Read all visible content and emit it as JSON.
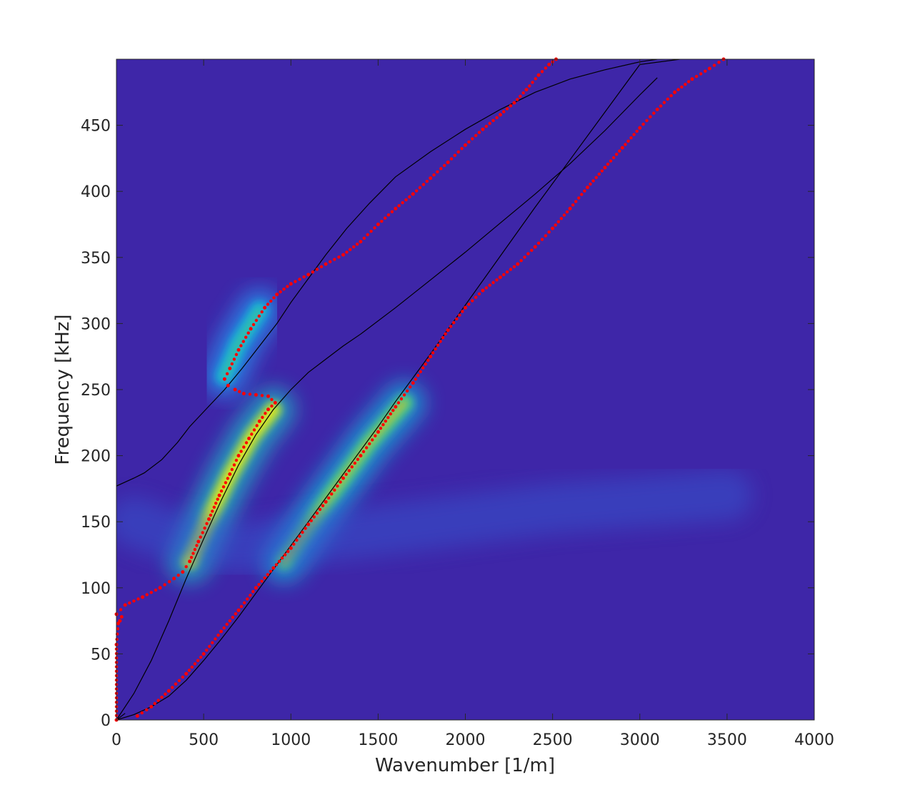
{
  "chart_data": {
    "type": "heatmap",
    "xlabel": "Wavenumber [1/m]",
    "ylabel": "Frequency [kHz]",
    "xlim": [
      0,
      4000
    ],
    "ylim": [
      0,
      500
    ],
    "xticks": [
      0,
      500,
      1000,
      1500,
      2000,
      2500,
      3000,
      3500,
      4000
    ],
    "yticks": [
      0,
      50,
      100,
      150,
      200,
      250,
      300,
      350,
      400,
      450
    ],
    "colormap": "parula",
    "colors": {
      "background": "#3e26a8",
      "theoretical_curves": "#000000",
      "extracted_points": "#ff0000"
    },
    "heatmap_ridges": [
      {
        "points": [
          [
            420,
            120
          ],
          [
            540,
            155
          ],
          [
            650,
            185
          ],
          [
            780,
            215
          ],
          [
            900,
            235
          ]
        ],
        "intensity": 0.95
      },
      {
        "points": [
          [
            620,
            260
          ],
          [
            700,
            285
          ],
          [
            820,
            310
          ]
        ],
        "intensity": 0.55
      },
      {
        "points": [
          [
            960,
            120
          ],
          [
            1200,
            165
          ],
          [
            1450,
            210
          ],
          [
            1650,
            240
          ]
        ],
        "intensity": 0.8
      },
      {
        "points": [
          [
            100,
            150
          ],
          [
            300,
            140
          ],
          [
            700,
            130
          ],
          [
            1300,
            140
          ],
          [
            2500,
            160
          ],
          [
            3500,
            170
          ]
        ],
        "intensity": 0.22
      }
    ],
    "theoretical_curves": [
      {
        "x": [
          0,
          100,
          160,
          260,
          350,
          420,
          520,
          620,
          720,
          820,
          920,
          1000,
          1100,
          1200,
          1320,
          1450,
          1600,
          1800,
          2000,
          2200,
          2400,
          2600,
          2800,
          3000,
          3100
        ],
        "y": [
          177,
          183,
          187,
          197,
          210,
          222,
          236,
          250,
          266,
          283,
          300,
          316,
          334,
          352,
          372,
          391,
          411,
          430,
          447,
          462,
          475,
          485,
          492,
          498,
          500
        ]
      },
      {
        "x": [
          0,
          100,
          200,
          300,
          400,
          500,
          600,
          700,
          800,
          900,
          1000,
          1100,
          1200,
          1300,
          1400,
          1600,
          1800,
          2000,
          2200,
          2400,
          2600,
          2800,
          3000,
          3100
        ],
        "y": [
          0,
          20,
          45,
          75,
          107,
          137,
          166,
          193,
          216,
          235,
          250,
          263,
          273,
          283,
          292,
          312,
          333,
          354,
          376,
          398,
          421,
          446,
          473,
          486
        ]
      },
      {
        "x": [
          0,
          100,
          200,
          300,
          400,
          500,
          600,
          700,
          800,
          900,
          1000,
          1100,
          1200,
          1300,
          1400,
          1500,
          1600,
          1800,
          2000,
          2200,
          2400,
          2600,
          2800,
          3000,
          3230
        ],
        "y": [
          0,
          4,
          10,
          18,
          30,
          45,
          61,
          78,
          96,
          114,
          132,
          150,
          168,
          186,
          204,
          222,
          241,
          277,
          314,
          351,
          388,
          424,
          460,
          496,
          500
        ]
      },
      {
        "x": [
          0,
          50
        ],
        "y": [
          0,
          5
        ]
      }
    ],
    "extracted_points": [
      {
        "x": [
          0,
          50,
          150,
          250,
          330,
          380,
          420,
          470,
          530,
          590,
          650,
          700,
          760,
          820,
          870,
          910,
          870,
          800,
          730,
          680,
          640,
          620,
          650,
          700,
          770,
          850,
          920,
          1000,
          1100,
          1200,
          1300,
          1400,
          1500,
          1600,
          1700,
          1800,
          1900,
          2000,
          2100,
          2200,
          2280,
          2350,
          2420,
          2480,
          2520
        ],
        "y": [
          80,
          87,
          93,
          100,
          107,
          112,
          120,
          135,
          152,
          170,
          186,
          200,
          213,
          226,
          235,
          240,
          245,
          246,
          247,
          250,
          253,
          258,
          266,
          280,
          296,
          312,
          322,
          330,
          337,
          345,
          352,
          362,
          375,
          387,
          398,
          410,
          422,
          435,
          447,
          458,
          467,
          477,
          488,
          496,
          500
        ]
      },
      {
        "x": [
          120,
          200,
          300,
          400,
          500,
          600,
          700,
          800,
          900,
          1000,
          1100,
          1200,
          1300,
          1400,
          1500,
          1600,
          1700,
          1800,
          1900,
          2000,
          2100,
          2200,
          2300,
          2400,
          2500,
          2600,
          2700,
          2800,
          2900,
          3000,
          3100,
          3200,
          3300,
          3400,
          3480
        ],
        "y": [
          3,
          10,
          22,
          35,
          50,
          67,
          83,
          100,
          115,
          130,
          148,
          165,
          183,
          200,
          218,
          237,
          255,
          275,
          295,
          312,
          325,
          335,
          345,
          358,
          372,
          387,
          403,
          418,
          433,
          448,
          462,
          475,
          485,
          493,
          500
        ]
      },
      {
        "x": [
          0,
          0,
          10,
          20,
          30
        ],
        "y": [
          0,
          57,
          73,
          75,
          78
        ]
      }
    ]
  }
}
